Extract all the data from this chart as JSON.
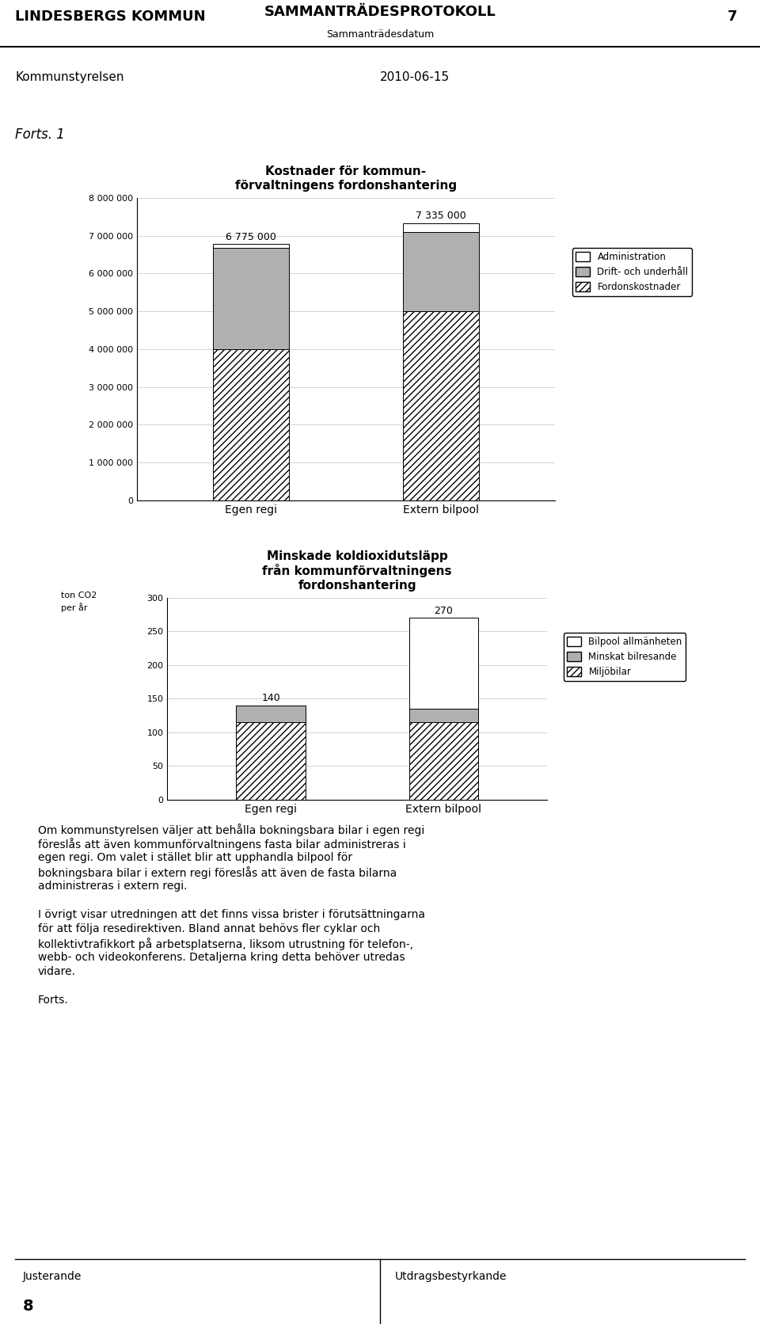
{
  "chart1": {
    "title": "Kostnader för kommun-\nförvaltningens fordonshantering",
    "categories": [
      "Egen regi",
      "Extern bilpool"
    ],
    "totals": [
      "6 775 000",
      "7 335 000"
    ],
    "total_values": [
      6775000,
      7335000
    ],
    "administration": [
      100000,
      235000
    ],
    "drift_underhall": [
      2675000,
      2100000
    ],
    "fordonskostnader": [
      4000000,
      5000000
    ],
    "ylim": [
      0,
      8000000
    ],
    "yticks": [
      0,
      1000000,
      2000000,
      3000000,
      4000000,
      5000000,
      6000000,
      7000000,
      8000000
    ],
    "ytick_labels": [
      "0",
      "1 000 000",
      "2 000 000",
      "3 000 000",
      "4 000 000",
      "5 000 000",
      "6 000 000",
      "7 000 000",
      "8 000 000"
    ],
    "legend": [
      "Administration",
      "Drift- och underhåll",
      "Fordonskostnader"
    ]
  },
  "chart2": {
    "title": "Minskade koldioxidutsläpp\nfrån kommunförvaltningens\nfordonshantering",
    "ylabel": "ton CO2\nper år",
    "categories": [
      "Egen regi",
      "Extern bilpool"
    ],
    "totals": [
      "140",
      "270"
    ],
    "total_values": [
      140,
      270
    ],
    "miljoobilar": [
      115,
      115
    ],
    "minskat_bilresande": [
      25,
      20
    ],
    "bilpool_allmanhet": [
      0,
      135
    ],
    "ylim": [
      0,
      300
    ],
    "yticks": [
      0,
      50,
      100,
      150,
      200,
      250,
      300
    ],
    "legend": [
      "Bilpool allmänheten",
      "Minskat bilresande",
      "Miljöbilar"
    ]
  },
  "page": {
    "header_left": "LINDESBERGS KOMMUN",
    "header_right": "SAMMANTRÄDESPROTOKOLL",
    "header_page": "7",
    "subheader_right": "Sammanträdesdatum",
    "section_left": "Kommunstyrelsen",
    "section_right": "2010-06-15",
    "forts": "Forts. 1",
    "footer_left": "Justerande",
    "footer_right": "Utdragsbestyrkande",
    "footer_page": "8",
    "background_color": "#ffffff"
  }
}
